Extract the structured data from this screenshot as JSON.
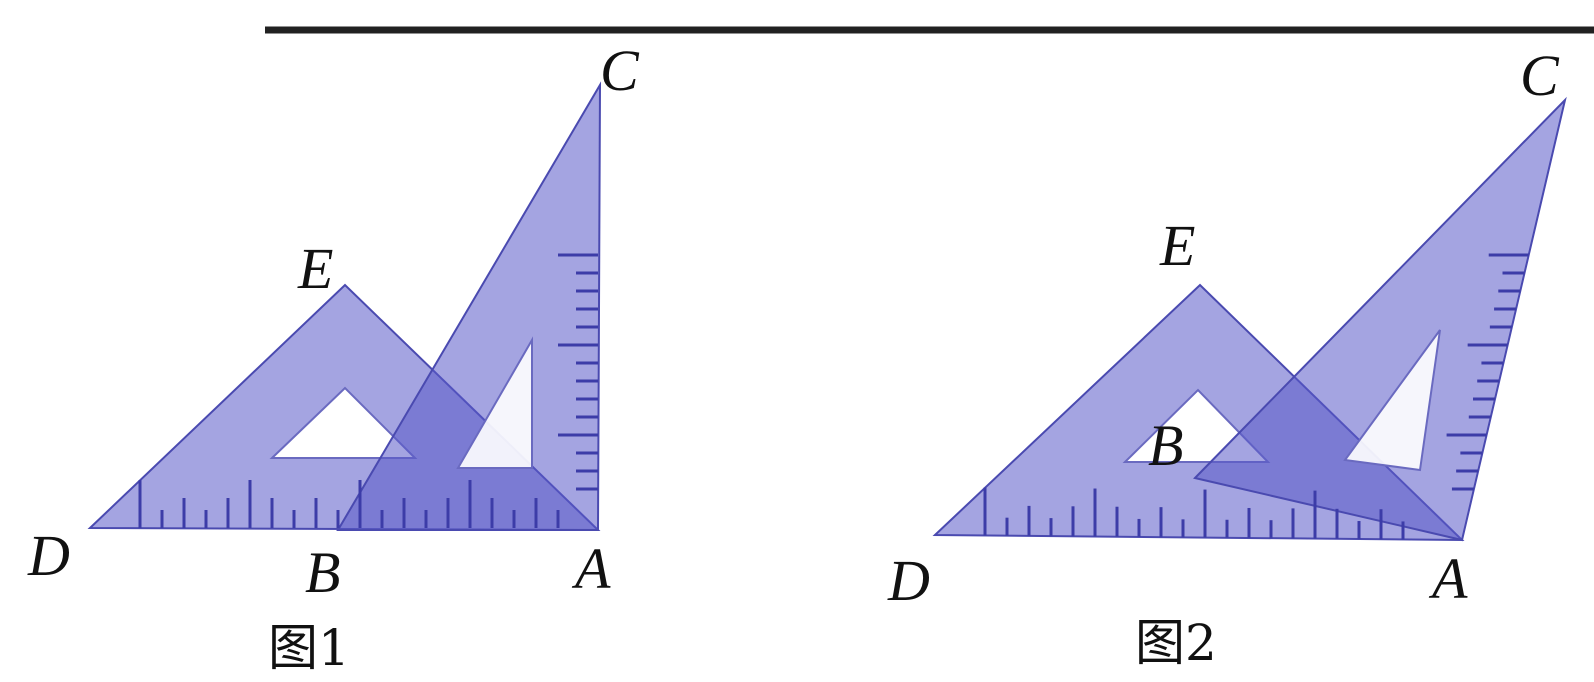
{
  "figures": [
    {
      "points": [
        "C",
        "E",
        "D",
        "B",
        "A"
      ],
      "caption": "图1"
    },
    {
      "points": [
        "C",
        "E",
        "B",
        "D",
        "A"
      ],
      "caption": "图2"
    }
  ]
}
